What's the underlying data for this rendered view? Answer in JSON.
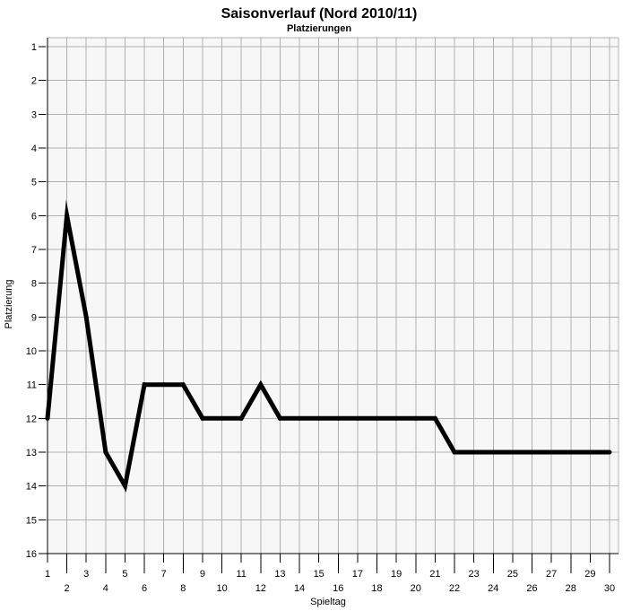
{
  "chart_data": {
    "type": "line",
    "title": "Saisonverlauf (Nord 2010/11)",
    "subtitle": "Platzierungen",
    "xlabel": "Spieltag",
    "ylabel": "Platzierung",
    "x": [
      1,
      2,
      3,
      4,
      5,
      6,
      7,
      8,
      9,
      10,
      11,
      12,
      13,
      14,
      15,
      16,
      17,
      18,
      19,
      20,
      21,
      22,
      23,
      24,
      25,
      26,
      27,
      28,
      29,
      30
    ],
    "y": [
      12,
      6,
      9,
      13,
      14,
      11,
      11,
      11,
      12,
      12,
      12,
      11,
      12,
      12,
      12,
      12,
      12,
      12,
      12,
      12,
      12,
      13,
      13,
      13,
      13,
      13,
      13,
      13,
      13,
      13
    ],
    "xlim": [
      1,
      30
    ],
    "ylim": [
      1,
      16
    ],
    "y_inverted": true,
    "grid": true,
    "line_color": "#000000",
    "x_ticks": [
      "1",
      "2",
      "3",
      "4",
      "5",
      "6",
      "7",
      "8",
      "9",
      "10",
      "11",
      "12",
      "13",
      "14",
      "15",
      "16",
      "17",
      "18",
      "19",
      "20",
      "21",
      "22",
      "23",
      "24",
      "25",
      "26",
      "27",
      "28",
      "29",
      "30"
    ],
    "y_ticks": [
      "1",
      "2",
      "3",
      "4",
      "5",
      "6",
      "7",
      "8",
      "9",
      "10",
      "11",
      "12",
      "13",
      "14",
      "15",
      "16"
    ]
  }
}
